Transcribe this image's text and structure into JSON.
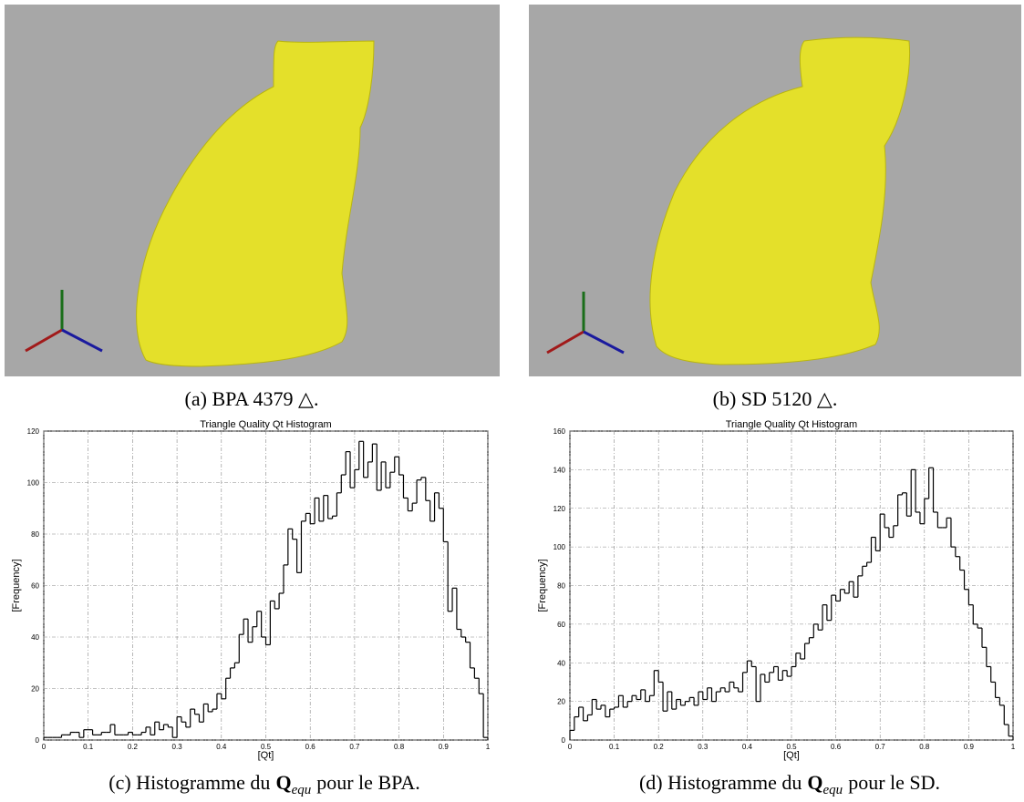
{
  "figures": [
    {
      "caption": "(a) BPA 4379 △."
    },
    {
      "caption": "(b) SD 5120 △."
    }
  ],
  "chart_data": [
    {
      "type": "histogram",
      "title": "Triangle Quality Qt Histogram",
      "x_label": "[Qt]",
      "y_label": "[Frequency]",
      "caption_prefix": "(c) Histogramme du",
      "caption_symbol": "Q",
      "caption_subscript": "equ",
      "caption_suffix": "pour le BPA.",
      "color": "#000000",
      "grid": true,
      "bins": [
        0,
        0.01,
        0.02,
        0.03,
        0.04,
        0.05,
        0.06,
        0.07,
        0.08,
        0.09,
        0.1,
        0.11,
        0.12,
        0.13,
        0.14,
        0.15,
        0.16,
        0.17,
        0.18,
        0.19,
        0.2,
        0.21,
        0.22,
        0.23,
        0.24,
        0.25,
        0.26,
        0.27,
        0.28,
        0.29,
        0.3,
        0.31,
        0.32,
        0.33,
        0.34,
        0.35,
        0.36,
        0.37,
        0.38,
        0.39,
        0.4,
        0.41,
        0.42,
        0.43,
        0.44,
        0.45,
        0.46,
        0.47,
        0.48,
        0.49,
        0.5,
        0.51,
        0.52,
        0.53,
        0.54,
        0.55,
        0.56,
        0.57,
        0.58,
        0.59,
        0.6,
        0.61,
        0.62,
        0.63,
        0.64,
        0.65,
        0.66,
        0.67,
        0.68,
        0.69,
        0.7,
        0.71,
        0.72,
        0.73,
        0.74,
        0.75,
        0.76,
        0.77,
        0.78,
        0.79,
        0.8,
        0.81,
        0.82,
        0.83,
        0.84,
        0.85,
        0.86,
        0.87,
        0.88,
        0.89,
        0.9,
        0.91,
        0.92,
        0.93,
        0.94,
        0.95,
        0.96,
        0.97,
        0.98,
        0.99,
        1
      ],
      "values": [
        1,
        1,
        1,
        1,
        2,
        2,
        3,
        3,
        1,
        4,
        4,
        2,
        2,
        3,
        3,
        6,
        2,
        2,
        2,
        3,
        2,
        2,
        3,
        5,
        2,
        7,
        4,
        6,
        5,
        1,
        9,
        7,
        5,
        12,
        10,
        7,
        14,
        11,
        12,
        18,
        16,
        24,
        28,
        30,
        41,
        47,
        38,
        44,
        50,
        40,
        37,
        54,
        51,
        57,
        68,
        82,
        78,
        65,
        85,
        88,
        84,
        94,
        85,
        95,
        86,
        87,
        96,
        103,
        112,
        98,
        105,
        116,
        102,
        108,
        115,
        97,
        108,
        98,
        104,
        110,
        103,
        94,
        89,
        92,
        101,
        102,
        93,
        85,
        96,
        90,
        77,
        50,
        59,
        43,
        40,
        38,
        28,
        24,
        18,
        1
      ],
      "xlim": [
        0,
        1
      ],
      "xticks": [
        0,
        0.1,
        0.2,
        0.3,
        0.4,
        0.5,
        0.6,
        0.7,
        0.8,
        0.9,
        1
      ],
      "ylim": [
        0,
        120
      ],
      "yticks": [
        0,
        20,
        40,
        60,
        80,
        100,
        120
      ]
    },
    {
      "type": "histogram",
      "title": "Triangle Quality Qt Histogram",
      "x_label": "[Qt]",
      "y_label": "[Frequency]",
      "caption_prefix": "(d) Histogramme du",
      "caption_symbol": "Q",
      "caption_subscript": "equ",
      "caption_suffix": "pour le SD.",
      "color": "#000000",
      "grid": true,
      "bins": [
        0,
        0.01,
        0.02,
        0.03,
        0.04,
        0.05,
        0.06,
        0.07,
        0.08,
        0.09,
        0.1,
        0.11,
        0.12,
        0.13,
        0.14,
        0.15,
        0.16,
        0.17,
        0.18,
        0.19,
        0.2,
        0.21,
        0.22,
        0.23,
        0.24,
        0.25,
        0.26,
        0.27,
        0.28,
        0.29,
        0.3,
        0.31,
        0.32,
        0.33,
        0.34,
        0.35,
        0.36,
        0.37,
        0.38,
        0.39,
        0.4,
        0.41,
        0.42,
        0.43,
        0.44,
        0.45,
        0.46,
        0.47,
        0.48,
        0.49,
        0.5,
        0.51,
        0.52,
        0.53,
        0.54,
        0.55,
        0.56,
        0.57,
        0.58,
        0.59,
        0.6,
        0.61,
        0.62,
        0.63,
        0.64,
        0.65,
        0.66,
        0.67,
        0.68,
        0.69,
        0.7,
        0.71,
        0.72,
        0.73,
        0.74,
        0.75,
        0.76,
        0.77,
        0.78,
        0.79,
        0.8,
        0.81,
        0.82,
        0.83,
        0.84,
        0.85,
        0.86,
        0.87,
        0.88,
        0.89,
        0.9,
        0.91,
        0.92,
        0.93,
        0.94,
        0.95,
        0.96,
        0.97,
        0.98,
        0.99,
        1
      ],
      "values": [
        5,
        12,
        17,
        10,
        13,
        21,
        16,
        18,
        12,
        16,
        17,
        23,
        17,
        20,
        23,
        21,
        26,
        20,
        23,
        36,
        30,
        15,
        25,
        16,
        21,
        18,
        20,
        22,
        18,
        25,
        21,
        27,
        20,
        25,
        27,
        25,
        30,
        27,
        25,
        35,
        41,
        38,
        20,
        34,
        30,
        35,
        38,
        31,
        36,
        33,
        38,
        45,
        42,
        50,
        53,
        60,
        57,
        70,
        62,
        75,
        72,
        78,
        76,
        82,
        74,
        85,
        90,
        92,
        105,
        98,
        117,
        110,
        105,
        111,
        127,
        128,
        116,
        140,
        118,
        112,
        125,
        141,
        118,
        110,
        110,
        115,
        100,
        95,
        88,
        78,
        70,
        60,
        58,
        48,
        38,
        30,
        22,
        18,
        8,
        2
      ],
      "xlim": [
        0,
        1
      ],
      "xticks": [
        0,
        0.1,
        0.2,
        0.3,
        0.4,
        0.5,
        0.6,
        0.7,
        0.8,
        0.9,
        1
      ],
      "ylim": [
        0,
        160
      ],
      "yticks": [
        0,
        20,
        40,
        60,
        80,
        100,
        120,
        140,
        160
      ]
    }
  ]
}
